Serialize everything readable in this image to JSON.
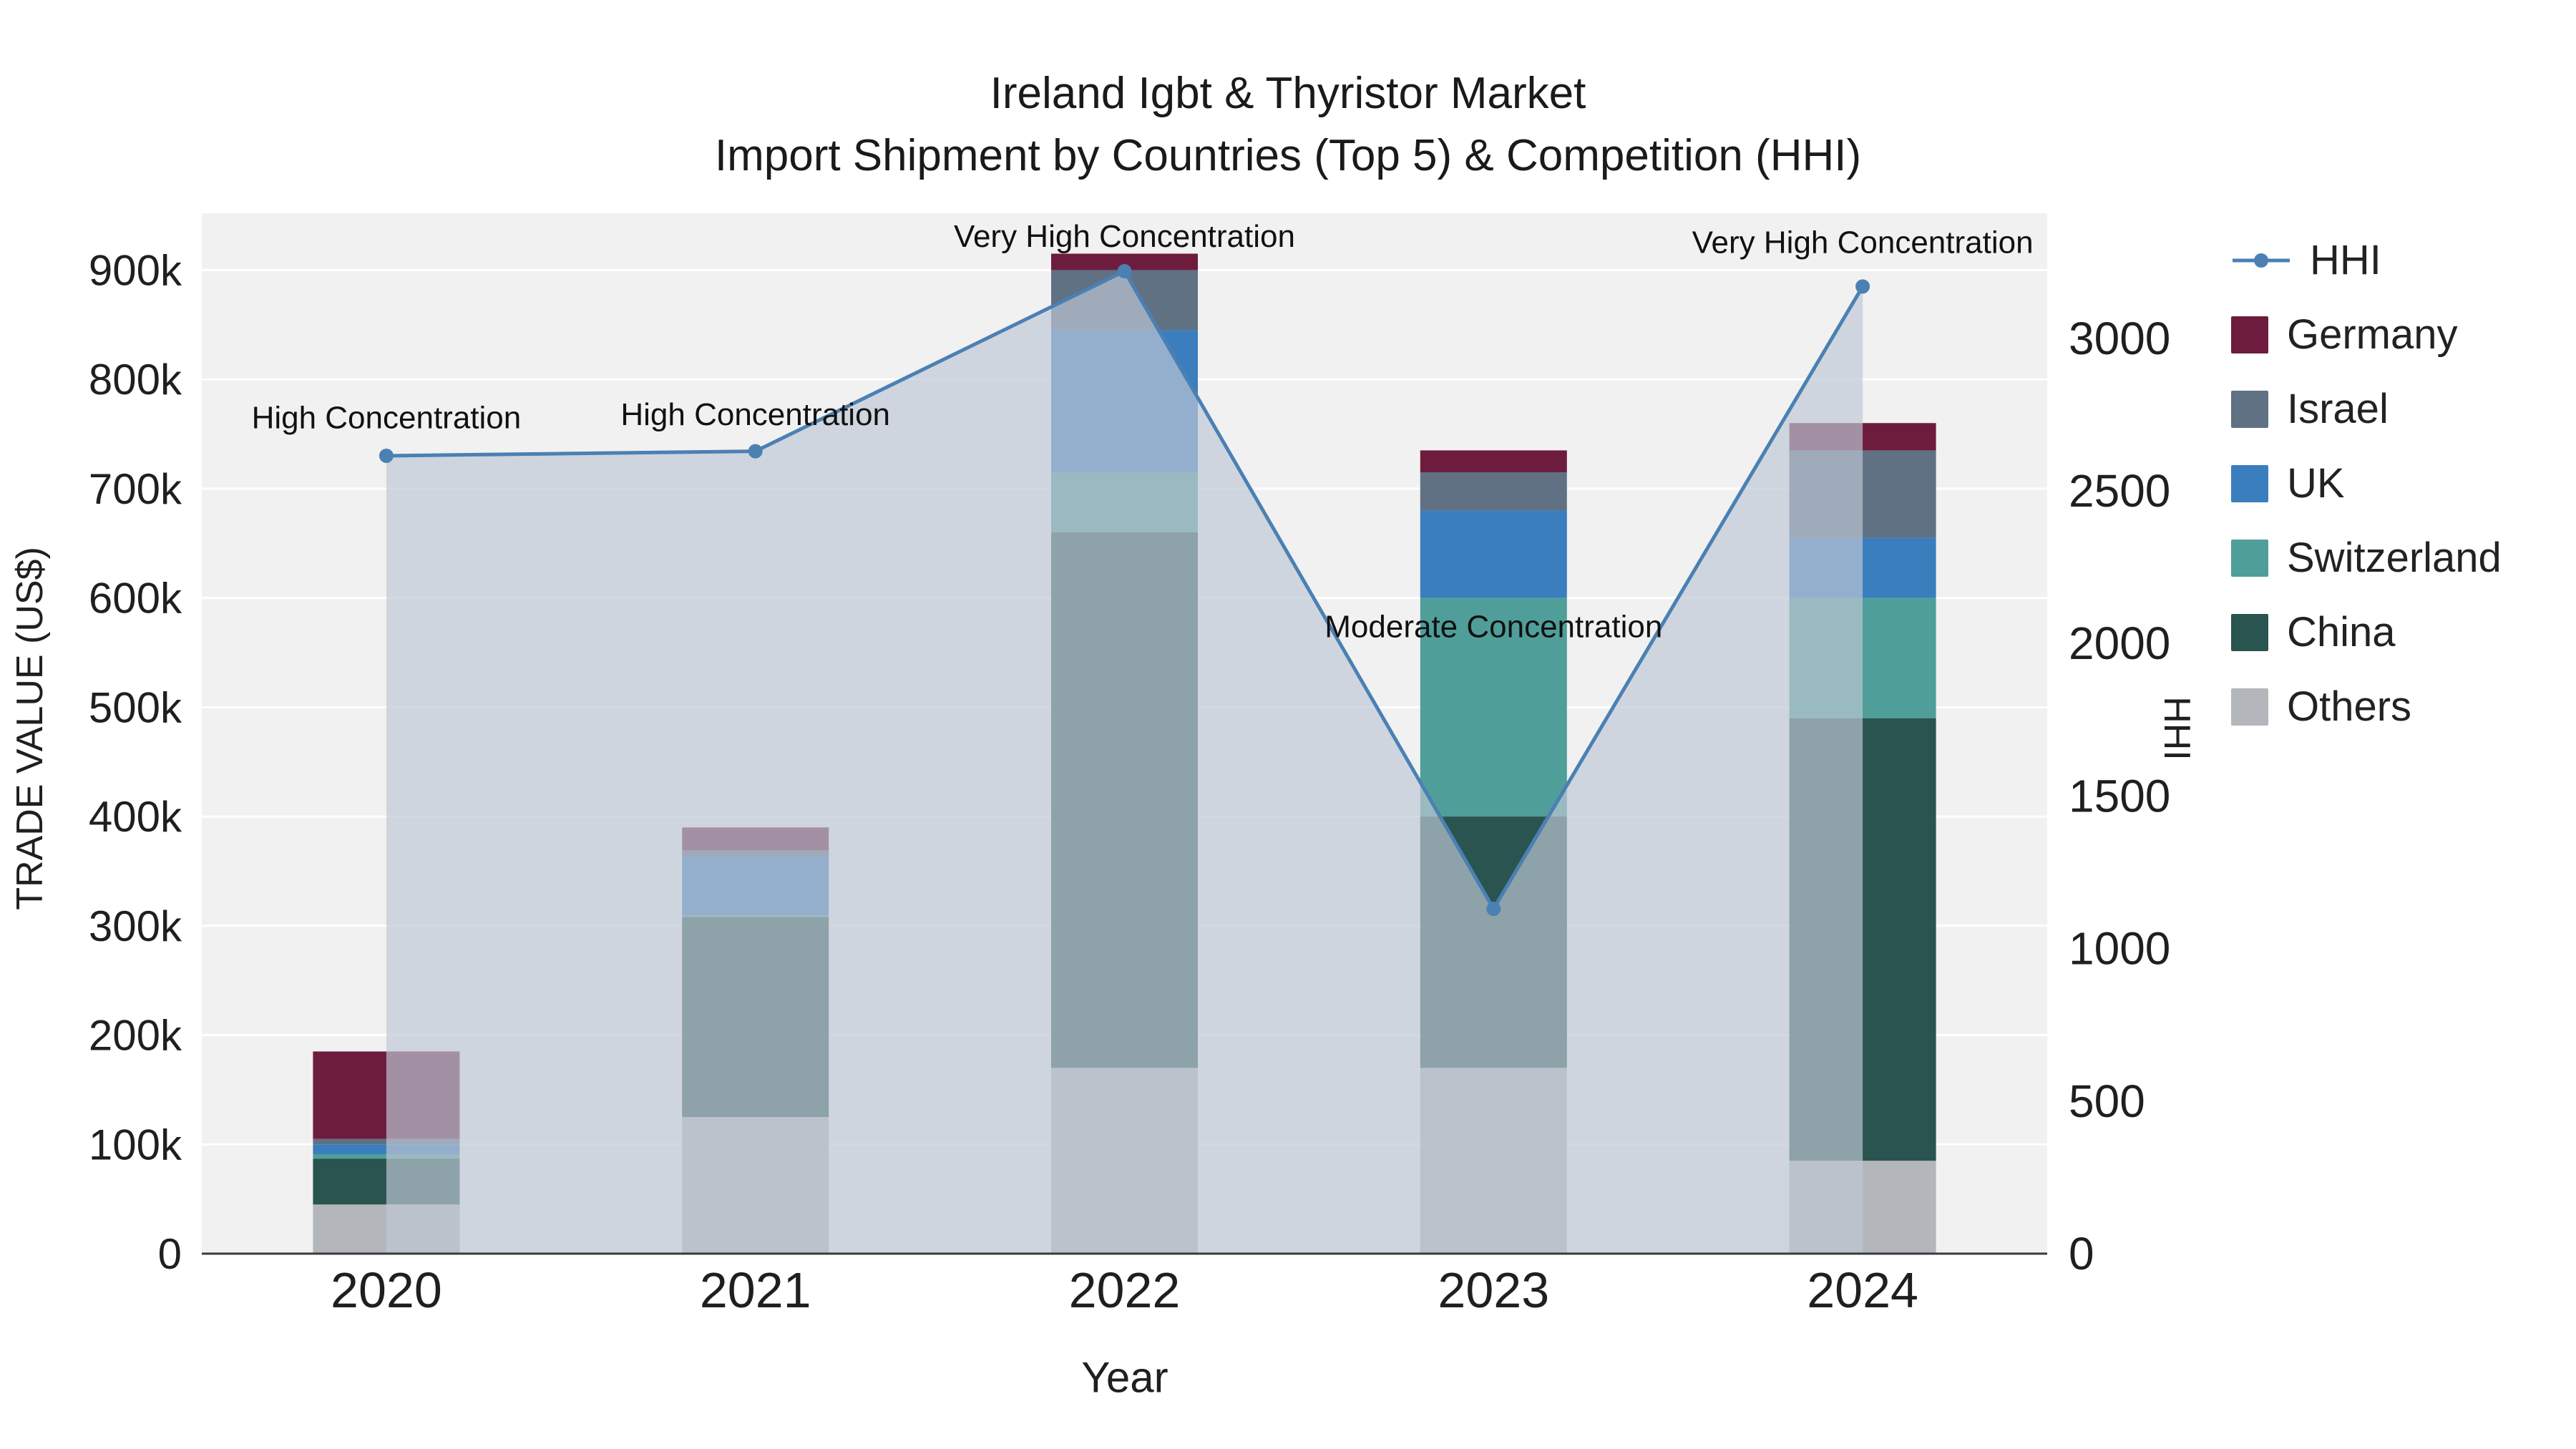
{
  "title": {
    "line1": "Ireland Igbt & Thyristor Market",
    "line2": "Import Shipment by Countries (Top 5) & Competition (HHI)"
  },
  "axes": {
    "x": {
      "title": "Year",
      "categories": [
        "2020",
        "2021",
        "2022",
        "2023",
        "2024"
      ]
    },
    "y_left": {
      "title": "TRADE VALUE (US$)",
      "max": 952000,
      "tick_values": [
        0,
        100000,
        200000,
        300000,
        400000,
        500000,
        600000,
        700000,
        800000,
        900000
      ],
      "tick_labels": [
        "0",
        "100k",
        "200k",
        "300k",
        "400k",
        "500k",
        "600k",
        "700k",
        "800k",
        "900k"
      ]
    },
    "y_right": {
      "title": "HHI",
      "max": 3410,
      "tick_values": [
        0,
        500,
        1000,
        1500,
        2000,
        2500,
        3000
      ],
      "tick_labels": [
        "0",
        "500",
        "1000",
        "1500",
        "2000",
        "2500",
        "3000"
      ]
    }
  },
  "chart_data": {
    "type": "bar+line",
    "categories": [
      "2020",
      "2021",
      "2022",
      "2023",
      "2024"
    ],
    "stack_order_note": "series listed bottom-to-top of the stacked bars; values in US$",
    "series": [
      {
        "name": "Others",
        "color": "#b3b6ba",
        "values": [
          45000,
          125000,
          170000,
          170000,
          85000
        ]
      },
      {
        "name": "China",
        "color": "#2a544f",
        "values": [
          42000,
          183000,
          490000,
          230000,
          405000
        ]
      },
      {
        "name": "Switzerland",
        "color": "#4f9e9a",
        "values": [
          4000,
          2000,
          55000,
          200000,
          110000
        ]
      },
      {
        "name": "UK",
        "color": "#3a7ebe",
        "values": [
          9000,
          53000,
          130000,
          80000,
          55000
        ]
      },
      {
        "name": "Israel",
        "color": "#5f7183",
        "values": [
          5000,
          6000,
          55000,
          35000,
          80000
        ]
      },
      {
        "name": "Germany",
        "color": "#6d1c3e",
        "values": [
          80000,
          21000,
          15000,
          20000,
          25000
        ]
      }
    ],
    "hhi": {
      "name": "HHI",
      "color": "#4b80b3",
      "area_fill": "rgba(190,199,212,0.68)",
      "values": [
        2615,
        2630,
        3220,
        1130,
        3170
      ]
    },
    "annotations": [
      {
        "text": "High Concentration",
        "x": 0,
        "y_hhi": 2705
      },
      {
        "text": "High Concentration",
        "x": 1,
        "y_hhi": 2716
      },
      {
        "text": "Very High Concentration",
        "x": 2,
        "y_hhi": 3300
      },
      {
        "text": "Moderate Concentration",
        "x": 3,
        "y_hhi": 2020
      },
      {
        "text": "Very High Concentration",
        "x": 4,
        "y_hhi": 3280
      }
    ],
    "ylim_left": [
      0,
      952000
    ],
    "ylim_right": [
      0,
      3410
    ],
    "grid": true,
    "legend_position": "right"
  },
  "legend": {
    "items": [
      {
        "label": "HHI",
        "type": "line",
        "color": "#4b80b3"
      },
      {
        "label": "Germany",
        "type": "square",
        "color": "#6d1c3e"
      },
      {
        "label": "Israel",
        "type": "square",
        "color": "#5f7183"
      },
      {
        "label": "UK",
        "type": "square",
        "color": "#3a7ebe"
      },
      {
        "label": "Switzerland",
        "type": "square",
        "color": "#4f9e9a"
      },
      {
        "label": "China",
        "type": "square",
        "color": "#2a544f"
      },
      {
        "label": "Others",
        "type": "square",
        "color": "#b3b6ba"
      }
    ]
  },
  "style": {
    "plot_bg": "#f1f1f1",
    "grid_color": "#ffffff",
    "axis_line_color": "#3a3a3a",
    "tick_color": "#1f1f1f",
    "annotation_color": "#111111"
  }
}
